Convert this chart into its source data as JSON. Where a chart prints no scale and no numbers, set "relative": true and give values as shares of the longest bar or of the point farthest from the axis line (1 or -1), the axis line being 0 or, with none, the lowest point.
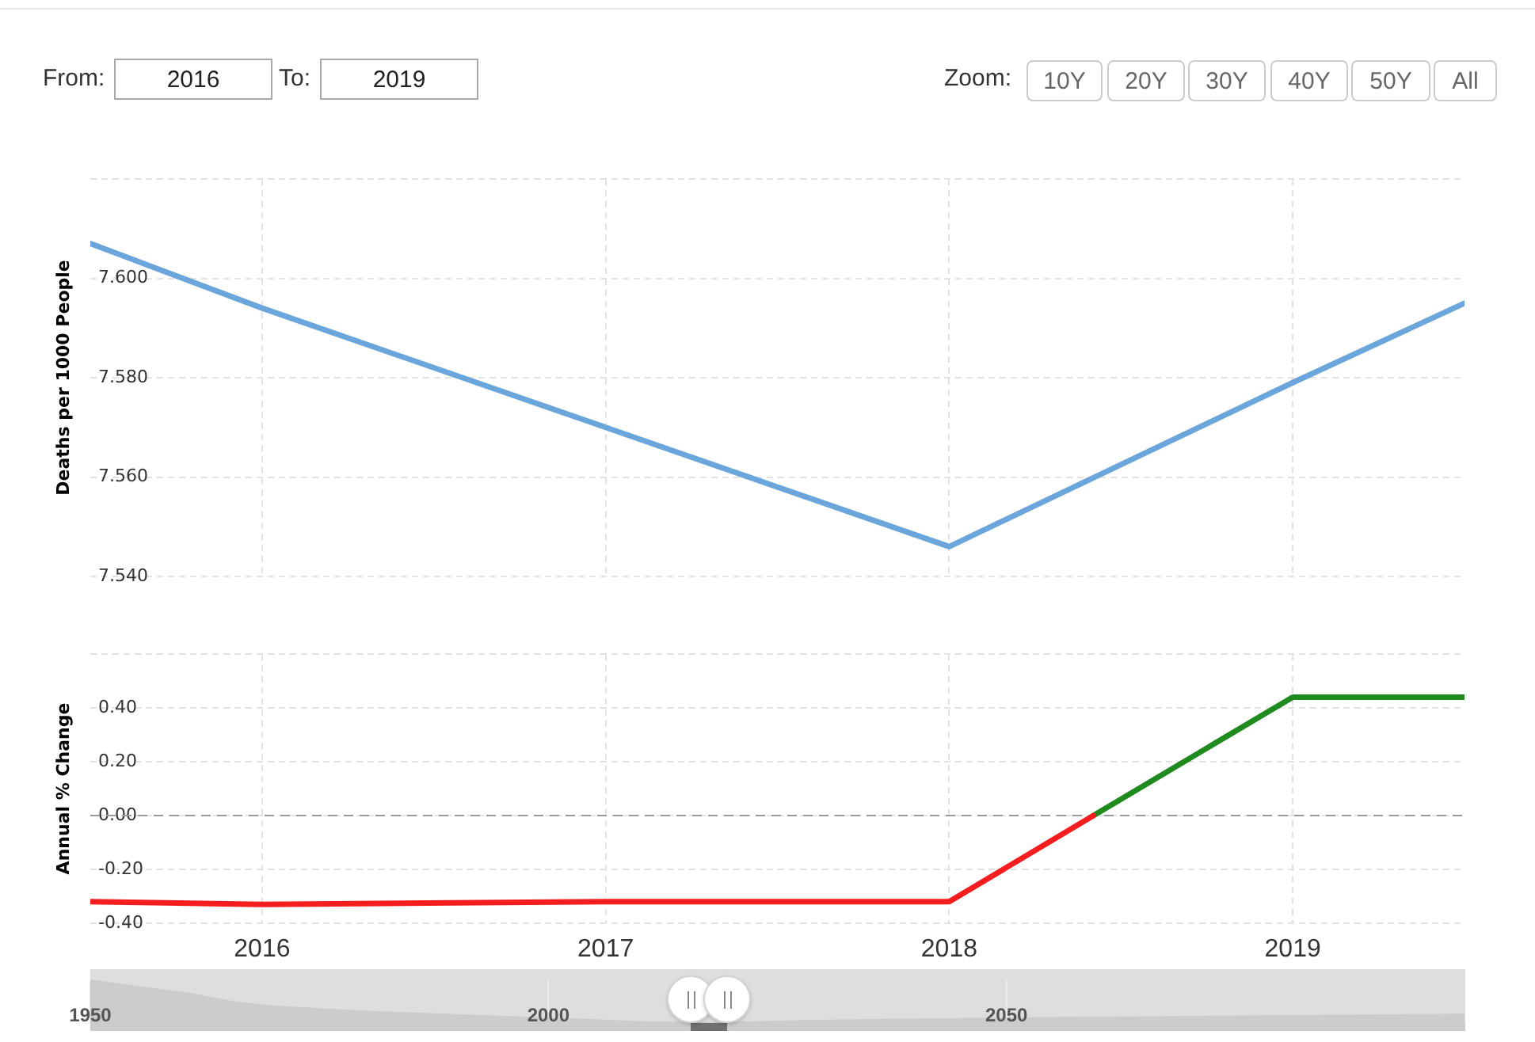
{
  "chart_data": [
    {
      "type": "line",
      "ylabel": "Deaths per 1000 People",
      "annotations": [
        "From:",
        "2016",
        "To:",
        "2019",
        "Zoom:",
        "10Y",
        "20Y",
        "30Y",
        "40Y",
        "50Y",
        "All"
      ],
      "x": [
        2015.5,
        2016,
        2017,
        2018,
        2019,
        2019.5
      ],
      "series": [
        {
          "color": "#6aa6db",
          "values": [
            7.607,
            7.594,
            7.57,
            7.546,
            7.579,
            7.595
          ]
        }
      ],
      "xlim": [
        2015.5,
        2019.5
      ],
      "xticks": [
        2016,
        2017,
        2018,
        2019
      ],
      "ylim": [
        7.54,
        7.62
      ],
      "yticks": [
        {
          "value": 7.54,
          "label": "7.540"
        },
        {
          "value": 7.56,
          "label": "7.560"
        },
        {
          "value": 7.58,
          "label": "7.580"
        },
        {
          "value": 7.6,
          "label": "7.600"
        },
        {
          "value": 7.62,
          "label": null
        }
      ],
      "grid": true,
      "tick_labels": "y"
    },
    {
      "type": "line",
      "ylabel": "Annual % Change",
      "series": [
        {
          "color": "#f51d1d",
          "x": [
            2015.5,
            2016,
            2017,
            2018,
            2018.42
          ],
          "values": [
            -0.32,
            -0.33,
            -0.32,
            -0.32,
            0
          ]
        },
        {
          "color": "#1f8b1f",
          "x": [
            2018.42,
            2019,
            2019.5
          ],
          "values": [
            0,
            0.44,
            0.44
          ]
        }
      ],
      "xlim": [
        2015.5,
        2019.5
      ],
      "xticks": [
        2016,
        2017,
        2018,
        2019
      ],
      "ylim": [
        -0.4,
        0.6
      ],
      "yticks": [
        {
          "value": -0.4,
          "label": "-0.40"
        },
        {
          "value": -0.2,
          "label": "-0.20"
        },
        {
          "value": 0,
          "label": "0.00"
        },
        {
          "value": 0.2,
          "label": "0.20"
        },
        {
          "value": 0.4,
          "label": "0.40"
        },
        {
          "value": 0.6,
          "label": null
        }
      ],
      "grid": true,
      "ref_lines": [
        {
          "axis": "y",
          "value": 0,
          "color": "#9a9a9a",
          "line_style": "dashed"
        }
      ]
    },
    {
      "type": "area",
      "relative": true,
      "x": [
        1950,
        1961,
        1966,
        1970,
        1980,
        1990,
        2000,
        2010,
        2017,
        2030,
        2050,
        2070,
        2100
      ],
      "series": [
        {
          "color": "#cccccc",
          "values": [
            1,
            0.68,
            0.48,
            0.39,
            0.27,
            0.19,
            0.11,
            0.03,
            0,
            0.06,
            0.11,
            0.15,
            0.2
          ]
        }
      ],
      "xlim": [
        1950,
        2100
      ],
      "xticks": [
        1950,
        2000,
        2050
      ],
      "grid": "x"
    }
  ]
}
